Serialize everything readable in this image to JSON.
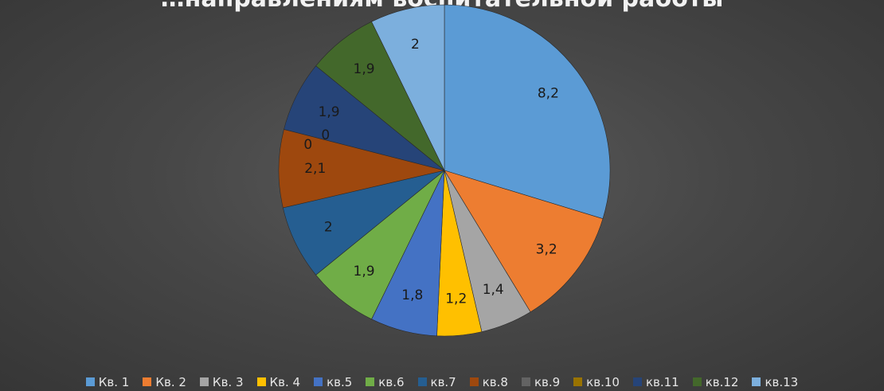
{
  "chart_data": {
    "type": "pie",
    "title": "…направлениям воспитательной работы",
    "categories": [
      "Кв. 1",
      "Кв. 2",
      "Кв. 3",
      "Кв. 4",
      "кв.5",
      "кв.6",
      "кв.7",
      "кв.8",
      "кв.9",
      "кв.10",
      "кв.11",
      "кв.12",
      "кв.13"
    ],
    "values": [
      8.2,
      3.2,
      1.4,
      1.2,
      1.8,
      1.9,
      2,
      2.1,
      0,
      0,
      1.9,
      1.9,
      2
    ],
    "value_labels": [
      "8,2",
      "3,2",
      "1,4",
      "1,2",
      "1,8",
      "1,9",
      "2",
      "2,1",
      "0",
      "0",
      "1,9",
      "1,9",
      "2"
    ],
    "colors": [
      "#5b9bd5",
      "#ed7d31",
      "#a5a5a5",
      "#ffc000",
      "#4472c4",
      "#70ad47",
      "#255e91",
      "#9e480e",
      "#636363",
      "#997300",
      "#264478",
      "#43682b",
      "#7cafdd"
    ],
    "legend_position": "bottom",
    "grid": false
  }
}
